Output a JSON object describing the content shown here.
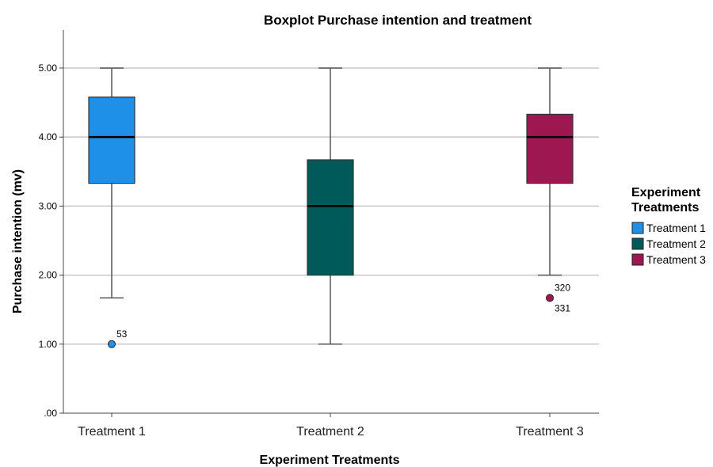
{
  "chart_data": {
    "type": "boxplot",
    "title": "Boxplot Purchase intention and treatment",
    "xlabel": "Experiment Treatments",
    "ylabel": "Purchase intention (mv)",
    "ylim": [
      0,
      5.55
    ],
    "yticks": [
      0,
      1,
      2,
      3,
      4,
      5
    ],
    "ytick_labels": [
      ".00",
      "1.00",
      "2.00",
      "3.00",
      "4.00",
      "5.00"
    ],
    "grid": true,
    "legend": {
      "title_line1": "Experiment",
      "title_line2": "Treatments",
      "placement": "right"
    },
    "categories": [
      "Treatment 1",
      "Treatment 2",
      "Treatment 3"
    ],
    "series": [
      {
        "name": "Treatment 1",
        "color": "#1e90e8",
        "min": 1.67,
        "q1": 3.33,
        "median": 4.0,
        "q3": 4.58,
        "max": 5.0,
        "outliers": [
          {
            "value": 1.0,
            "labels": [
              "53"
            ]
          }
        ]
      },
      {
        "name": "Treatment 2",
        "color": "#005a5a",
        "min": 1.0,
        "q1": 2.0,
        "median": 3.0,
        "q3": 3.67,
        "max": 5.0,
        "outliers": []
      },
      {
        "name": "Treatment 3",
        "color": "#9e1750",
        "min": 2.0,
        "q1": 3.33,
        "median": 4.0,
        "q3": 4.33,
        "max": 5.0,
        "outliers": [
          {
            "value": 1.67,
            "labels": [
              "320",
              "331"
            ]
          }
        ]
      }
    ]
  }
}
